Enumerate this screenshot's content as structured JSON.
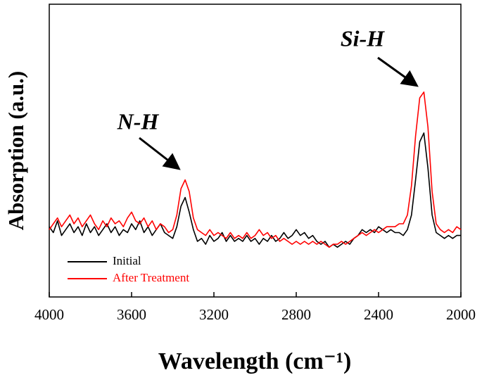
{
  "chart_data": {
    "type": "line",
    "x_label": "Wavelength (cm⁻¹)",
    "y_label": "Absorption (a.u.)",
    "annotations": [
      "N-H",
      "Si-H"
    ],
    "legend": "lower left",
    "xlim": [
      4000,
      2000
    ],
    "xticks": [
      4000,
      3600,
      3200,
      2800,
      2400,
      2000
    ],
    "ylim": [
      0,
      100
    ],
    "x": [
      4000,
      3980,
      3960,
      3940,
      3920,
      3900,
      3880,
      3860,
      3840,
      3820,
      3800,
      3780,
      3760,
      3740,
      3720,
      3700,
      3680,
      3660,
      3640,
      3620,
      3600,
      3580,
      3560,
      3540,
      3520,
      3500,
      3480,
      3460,
      3440,
      3420,
      3400,
      3380,
      3360,
      3340,
      3320,
      3300,
      3280,
      3260,
      3240,
      3220,
      3200,
      3180,
      3160,
      3140,
      3120,
      3100,
      3080,
      3060,
      3040,
      3020,
      3000,
      2980,
      2960,
      2940,
      2920,
      2900,
      2880,
      2860,
      2840,
      2820,
      2800,
      2780,
      2760,
      2740,
      2720,
      2700,
      2680,
      2660,
      2640,
      2620,
      2600,
      2580,
      2560,
      2540,
      2520,
      2500,
      2480,
      2460,
      2440,
      2420,
      2400,
      2380,
      2360,
      2340,
      2320,
      2300,
      2280,
      2260,
      2240,
      2220,
      2200,
      2180,
      2160,
      2140,
      2120,
      2100,
      2080,
      2060,
      2040,
      2020,
      2000
    ],
    "series": [
      {
        "name": "Initial",
        "color": "#000000",
        "values": [
          24,
          22,
          26,
          21,
          23,
          25,
          22,
          24,
          21,
          25,
          22,
          24,
          21,
          23,
          25,
          22,
          24,
          21,
          23,
          22,
          25,
          23,
          26,
          22,
          24,
          21,
          23,
          25,
          22,
          21,
          20,
          24,
          31,
          34,
          29,
          23,
          19,
          20,
          18,
          21,
          19,
          20,
          22,
          19,
          21,
          19,
          20,
          19,
          21,
          19,
          20,
          18,
          20,
          19,
          21,
          19,
          20,
          22,
          20,
          21,
          23,
          21,
          22,
          20,
          21,
          19,
          18,
          19,
          17,
          18,
          17,
          18,
          19,
          18,
          20,
          21,
          23,
          22,
          23,
          22,
          24,
          23,
          22,
          23,
          22,
          22,
          21,
          23,
          28,
          40,
          53,
          56,
          44,
          28,
          22,
          21,
          20,
          21,
          20,
          21,
          21
        ]
      },
      {
        "name": "After Treatment",
        "color": "#ff0000",
        "values": [
          23,
          25,
          27,
          24,
          26,
          28,
          25,
          27,
          24,
          26,
          28,
          25,
          23,
          26,
          24,
          27,
          25,
          26,
          24,
          27,
          29,
          26,
          25,
          27,
          24,
          26,
          23,
          25,
          24,
          22,
          23,
          28,
          37,
          40,
          36,
          27,
          23,
          22,
          21,
          23,
          21,
          22,
          21,
          20,
          22,
          20,
          21,
          20,
          22,
          20,
          21,
          23,
          21,
          22,
          20,
          21,
          19,
          20,
          19,
          18,
          19,
          18,
          19,
          18,
          19,
          18,
          19,
          18,
          17,
          18,
          18,
          19,
          18,
          19,
          20,
          21,
          22,
          21,
          22,
          23,
          22,
          23,
          24,
          24,
          24,
          25,
          25,
          28,
          38,
          55,
          68,
          70,
          58,
          36,
          25,
          23,
          22,
          23,
          22,
          24,
          23
        ]
      }
    ]
  }
}
